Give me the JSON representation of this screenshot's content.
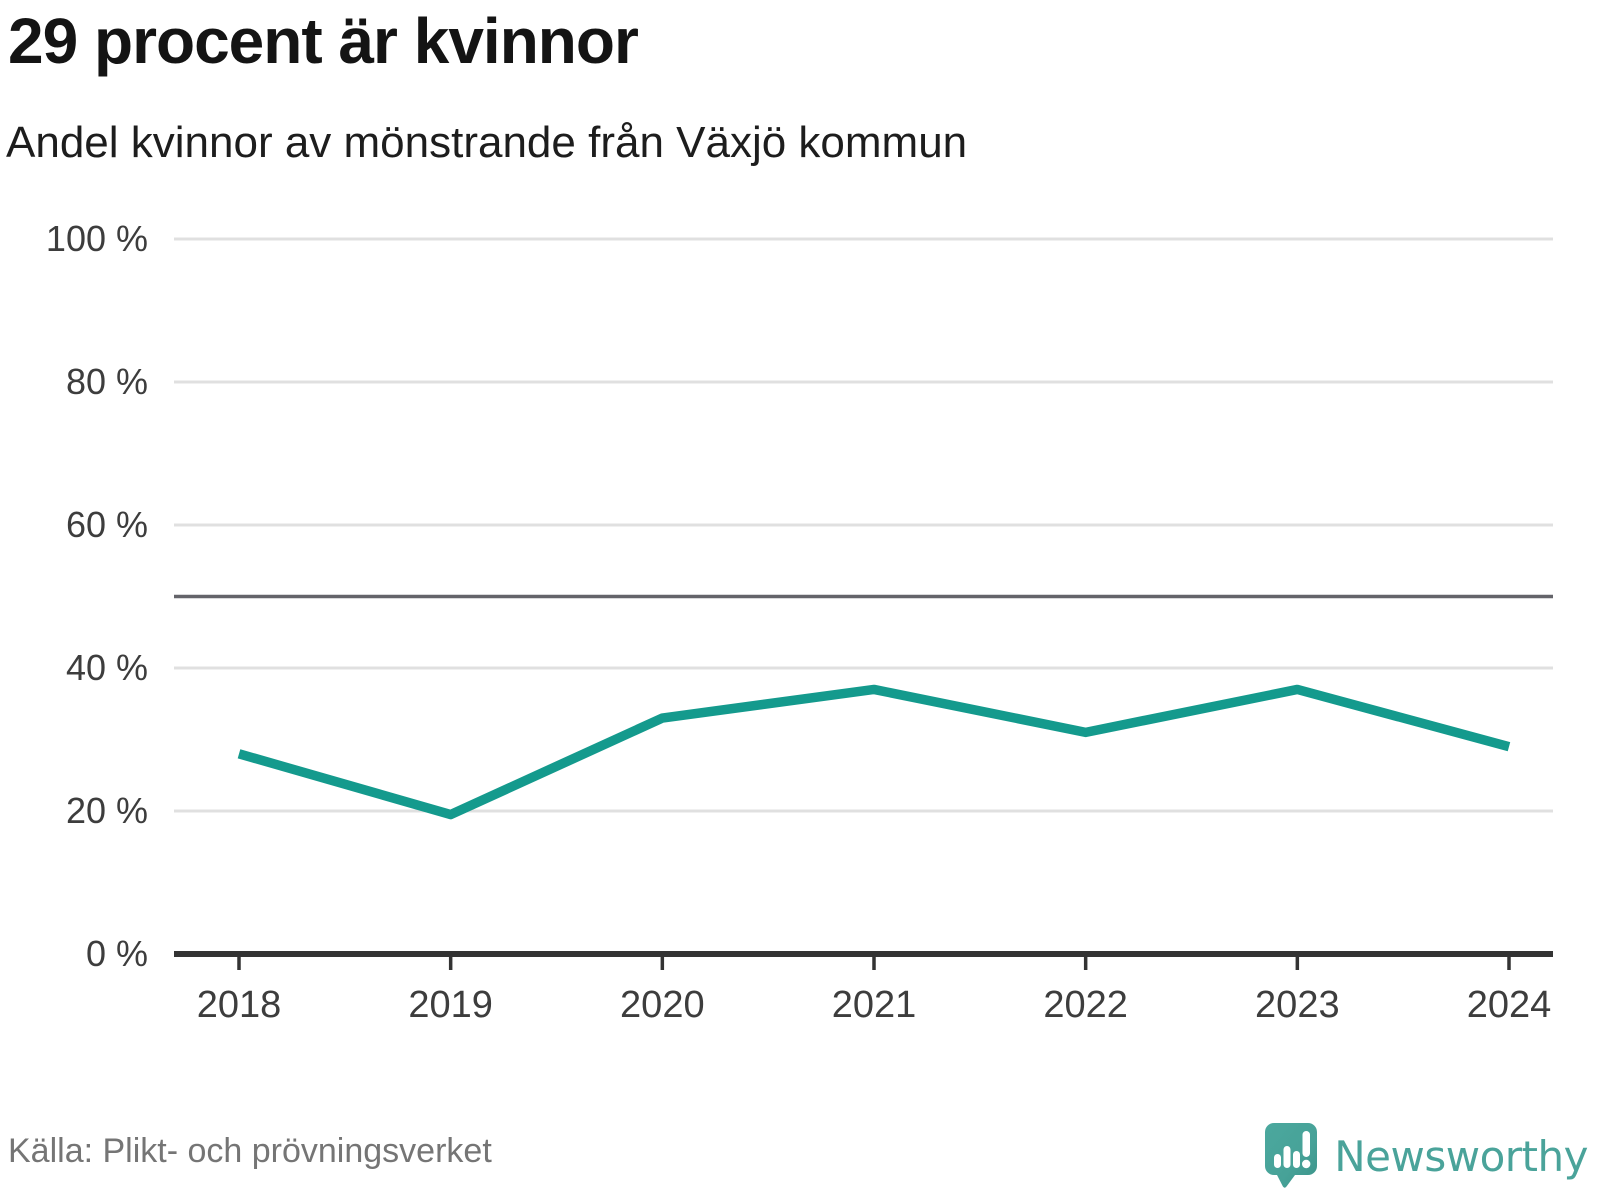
{
  "header": {
    "title": "29 procent är kvinnor",
    "subtitle": "Andel kvinnor av mönstrande från Växjö kommun"
  },
  "footer": {
    "source": "Källa: Plikt- och prövningsverket",
    "brand": "Newsworthy"
  },
  "colors": {
    "line": "#149a8d",
    "grid": "#e0e0e0",
    "reference_line": "#64646a",
    "axis": "#333333",
    "tick_text": "#3d3d3d",
    "title_text": "#141414",
    "source_text": "#757575",
    "logo_teal": "#4aa39a",
    "background": "#ffffff"
  },
  "chart_data": {
    "type": "line",
    "title": "29 procent är kvinnor",
    "subtitle": "Andel kvinnor av mönstrande från Växjö kommun",
    "x": [
      "2018",
      "2019",
      "2020",
      "2021",
      "2022",
      "2023",
      "2024"
    ],
    "series": [
      {
        "name": "Andel kvinnor av mönstrande",
        "color": "#149a8d",
        "values": [
          28,
          19.5,
          33,
          37,
          31,
          37,
          29
        ]
      }
    ],
    "ylim": [
      0,
      100
    ],
    "yticks": [
      0,
      20,
      40,
      60,
      80,
      100
    ],
    "ytick_suffix": " %",
    "reference_line": 50,
    "grid": true,
    "legend": "none",
    "source": "Källa: Plikt- och prövningsverket"
  }
}
